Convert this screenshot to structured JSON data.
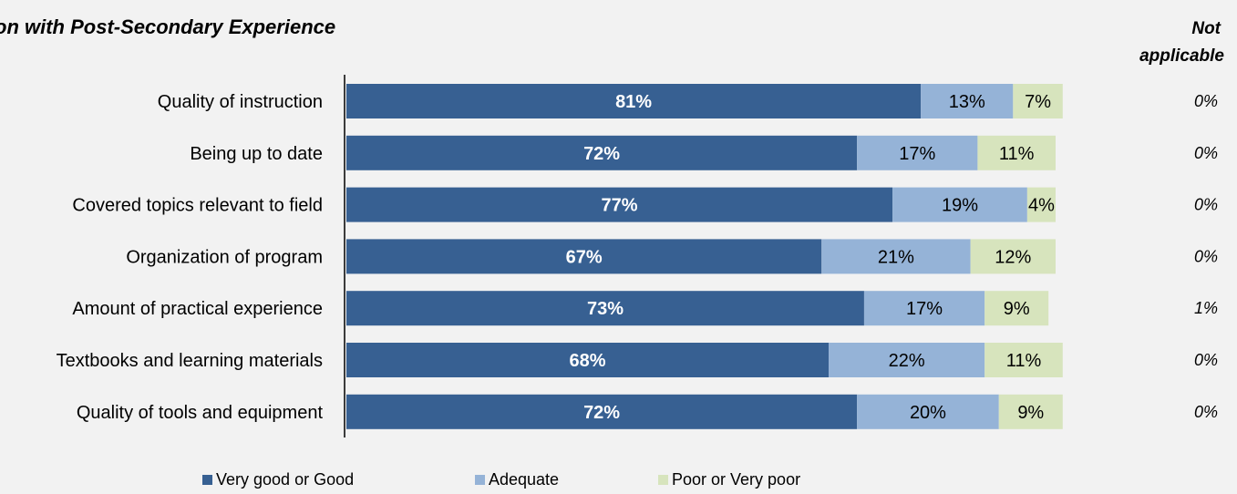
{
  "chart_data": {
    "type": "bar",
    "orientation": "horizontal",
    "stacked": true,
    "title": "on with Post-Secondary Experience",
    "categories": [
      "Quality of instruction",
      "Being up to date",
      "Covered topics relevant to field",
      "Organization of program",
      "Amount of practical experience",
      "Textbooks and learning materials",
      "Quality of tools and equipment"
    ],
    "series": [
      {
        "name": "Very good or Good",
        "color": "#376092",
        "values": [
          81,
          72,
          77,
          67,
          73,
          68,
          72
        ]
      },
      {
        "name": "Adequate",
        "color": "#95b3d7",
        "values": [
          13,
          17,
          19,
          21,
          17,
          22,
          20
        ]
      },
      {
        "name": "Poor or Very poor",
        "color": "#d7e4bd",
        "values": [
          7,
          11,
          4,
          12,
          9,
          11,
          9
        ]
      }
    ],
    "not_applicable": {
      "header": [
        "Not",
        "applicable"
      ],
      "values": [
        "0%",
        "0%",
        "0%",
        "0%",
        "1%",
        "0%",
        "0%"
      ]
    },
    "value_suffix": "%",
    "xlim": [
      0,
      100
    ],
    "legend_position": "bottom",
    "grid": false
  }
}
